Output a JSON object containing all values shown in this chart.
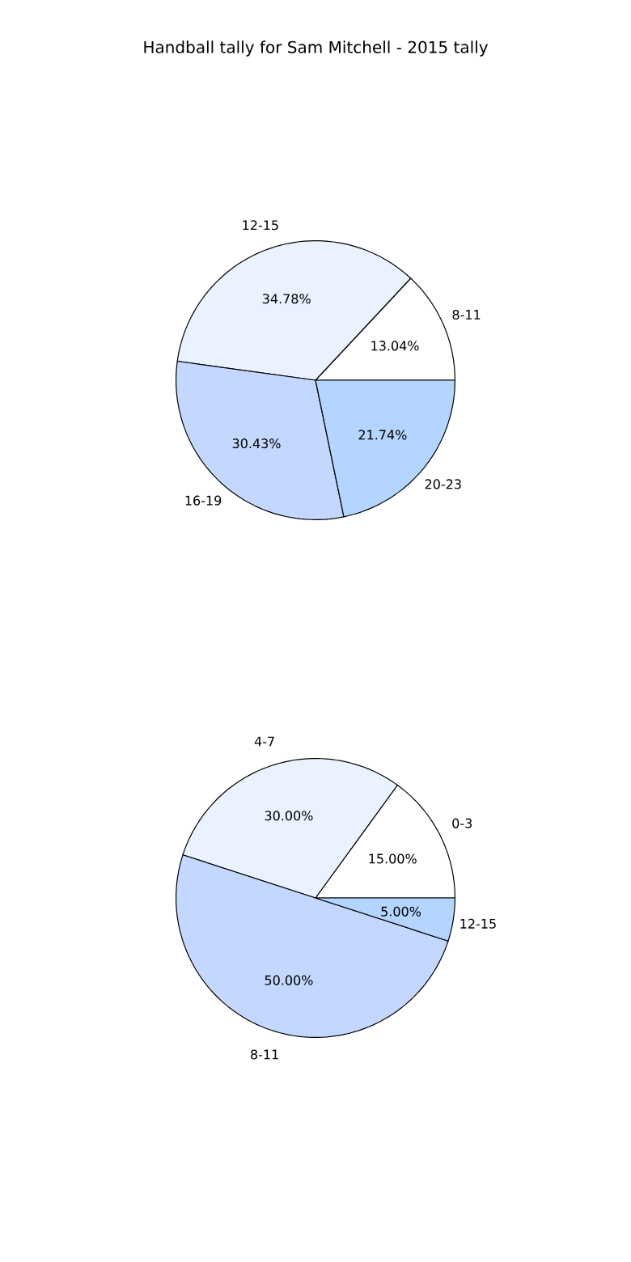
{
  "chart_data": [
    {
      "type": "pie",
      "title": "Handball tally for Sam Mitchell - 2015 tally",
      "categories": [
        "8-11",
        "12-15",
        "16-19",
        "20-23"
      ],
      "values": [
        13.04,
        34.78,
        30.43,
        21.74
      ],
      "value_labels": [
        "13.04%",
        "34.78%",
        "30.43%",
        "21.74%"
      ],
      "colors": [
        "#ffffff",
        "#eaf2ff",
        "#c4d8ff",
        "#b4d5ff"
      ]
    },
    {
      "type": "pie",
      "categories": [
        "0-3",
        "4-7",
        "8-11",
        "12-15"
      ],
      "values": [
        15.0,
        30.0,
        50.0,
        5.0
      ],
      "value_labels": [
        "15.00%",
        "30.00%",
        "50.00%",
        "5.00%"
      ],
      "colors": [
        "#ffffff",
        "#eaf2ff",
        "#c4d8ff",
        "#b4d5ff"
      ]
    }
  ]
}
